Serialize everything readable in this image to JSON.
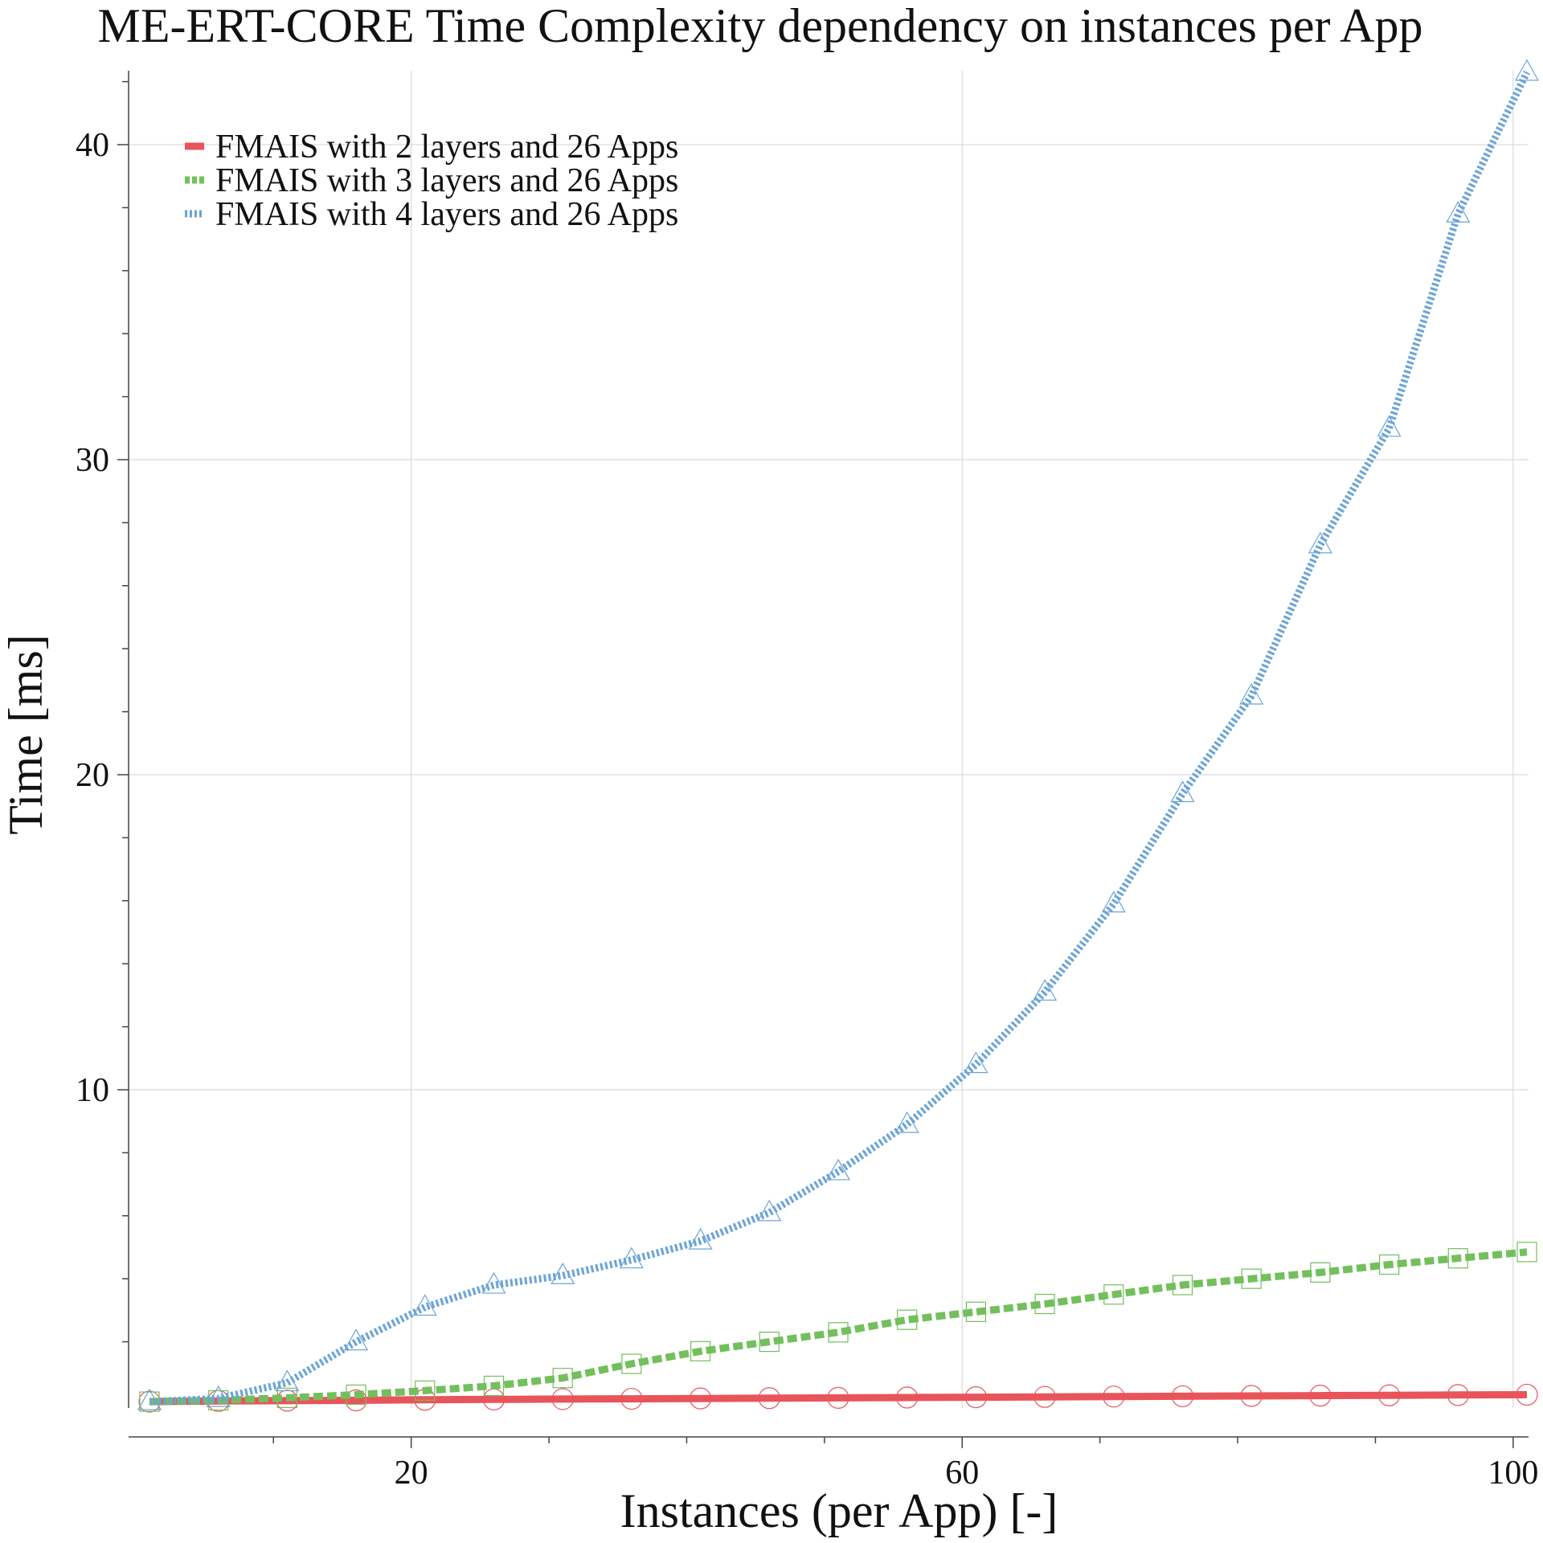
{
  "chart_data": {
    "type": "line",
    "title": "ME-ERT-CORE Time Complexity dependency on instances per App",
    "xlabel": "Instances (per App) [-]",
    "ylabel": "Time [ms]",
    "xlim": [
      1,
      101
    ],
    "ylim": [
      0,
      42.3
    ],
    "xticks": [
      20,
      60,
      100
    ],
    "yticks": [
      10,
      20,
      30,
      40
    ],
    "x_minor_step": 10,
    "y_minor_step": 2,
    "grid": true,
    "legend_position": "top-left",
    "x": [
      1,
      6,
      11,
      16,
      21,
      26,
      31,
      36,
      41,
      46,
      51,
      56,
      61,
      66,
      71,
      76,
      81,
      86,
      91,
      96,
      101
    ],
    "series": [
      {
        "name": "FMAIS with 2 layers and 26 Apps",
        "color": "#e8545a",
        "line_style": "solid",
        "marker": "circle",
        "values": [
          0.1,
          0.12,
          0.13,
          0.14,
          0.16,
          0.17,
          0.18,
          0.19,
          0.2,
          0.21,
          0.22,
          0.23,
          0.24,
          0.25,
          0.26,
          0.27,
          0.28,
          0.29,
          0.3,
          0.31,
          0.32
        ]
      },
      {
        "name": "FMAIS with 3 layers and 26 Apps",
        "color": "#73bf5c",
        "line_style": "dashed",
        "marker": "square",
        "values": [
          0.1,
          0.14,
          0.22,
          0.32,
          0.45,
          0.6,
          0.85,
          1.3,
          1.7,
          2.0,
          2.3,
          2.7,
          2.95,
          3.2,
          3.5,
          3.8,
          4.0,
          4.2,
          4.45,
          4.65,
          4.85
        ]
      },
      {
        "name": "FMAIS with 4 layers and 26 Apps",
        "color": "#6aa4d8",
        "line_style": "dotted",
        "marker": "triangle",
        "values": [
          0.1,
          0.2,
          0.7,
          2.0,
          3.1,
          3.8,
          4.1,
          4.6,
          5.2,
          6.1,
          7.4,
          8.9,
          10.8,
          13.1,
          15.9,
          19.4,
          22.5,
          27.3,
          31.0,
          37.8,
          42.3
        ]
      }
    ]
  }
}
